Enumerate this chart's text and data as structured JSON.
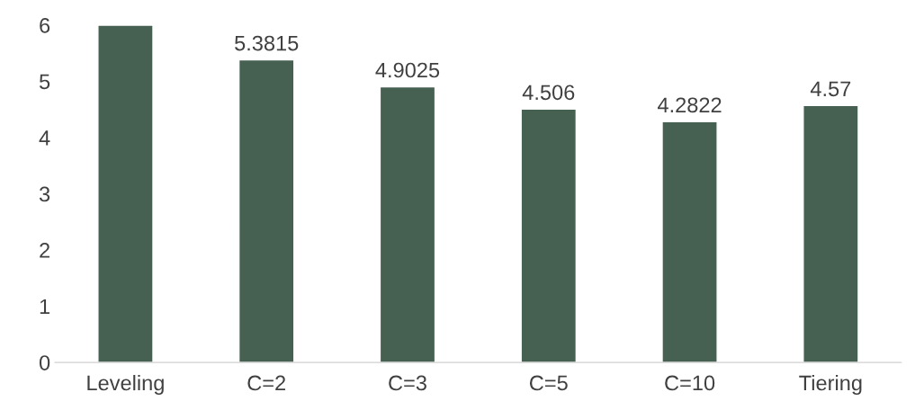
{
  "chart_data": {
    "type": "bar",
    "categories": [
      "Leveling",
      "C=2",
      "C=3",
      "C=5",
      "C=10",
      "Tiering"
    ],
    "values": [
      6,
      5.3815,
      4.9025,
      4.506,
      4.2822,
      4.57
    ],
    "value_labels": [
      null,
      "5.3815",
      "4.9025",
      "4.506",
      "4.2822",
      "4.57"
    ],
    "color": "#466152",
    "ylim": [
      0,
      6
    ],
    "yticks": [
      0,
      1,
      2,
      3,
      4,
      5,
      6
    ],
    "grid": false,
    "legend": false
  }
}
